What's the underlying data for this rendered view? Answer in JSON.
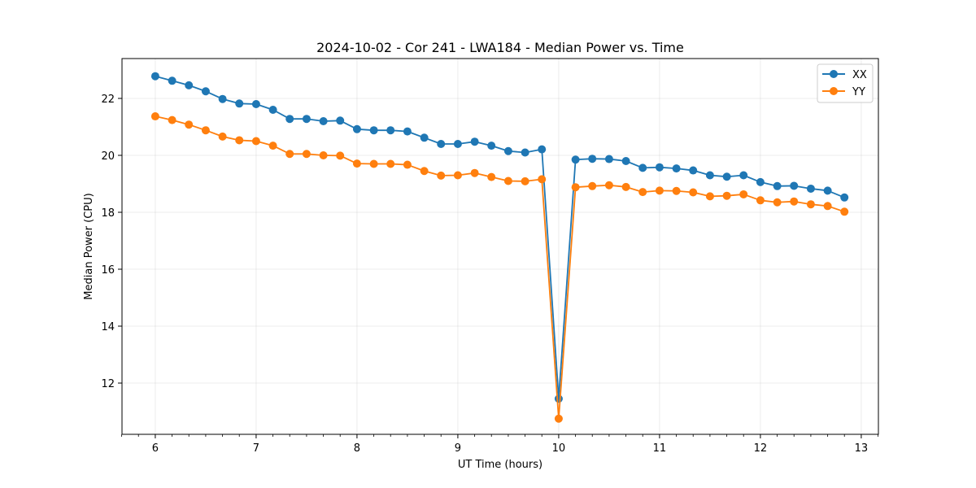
{
  "chart_data": {
    "type": "line",
    "title": "2024-10-02 - Cor 241 - LWA184 - Median Power vs. Time",
    "xlabel": "UT Time (hours)",
    "ylabel": "Median Power (CPU)",
    "xlim": [
      5.67,
      13.17
    ],
    "ylim": [
      10.2,
      23.4
    ],
    "xticks": [
      6,
      7,
      8,
      9,
      10,
      11,
      12,
      13
    ],
    "xtick_labels": [
      "6",
      "7",
      "8",
      "9",
      "10",
      "11",
      "12",
      "13"
    ],
    "xminor_ticks": [
      5.667,
      5.833,
      6.167,
      6.333,
      6.5,
      6.667,
      6.833,
      7.167,
      7.333,
      7.5,
      7.667,
      7.833,
      8.167,
      8.333,
      8.5,
      8.667,
      8.833,
      9.167,
      9.333,
      9.5,
      9.667,
      9.833,
      10.167,
      10.333,
      10.5,
      10.667,
      10.833,
      11.167,
      11.333,
      11.5,
      11.667,
      11.833,
      12.167,
      12.333,
      12.5,
      12.667,
      12.833,
      13.167
    ],
    "yticks": [
      12,
      14,
      16,
      18,
      20,
      22
    ],
    "ytick_labels": [
      "12",
      "14",
      "16",
      "18",
      "20",
      "22"
    ],
    "grid": true,
    "legend_position": "top-right",
    "x": [
      6.0,
      6.167,
      6.333,
      6.5,
      6.667,
      6.833,
      7.0,
      7.167,
      7.333,
      7.5,
      7.667,
      7.833,
      8.0,
      8.167,
      8.333,
      8.5,
      8.667,
      8.833,
      9.0,
      9.167,
      9.333,
      9.5,
      9.667,
      9.833,
      10.0,
      10.167,
      10.333,
      10.5,
      10.667,
      10.833,
      11.0,
      11.167,
      11.333,
      11.5,
      11.667,
      11.833,
      12.0,
      12.167,
      12.333,
      12.5,
      12.667,
      12.833
    ],
    "series": [
      {
        "name": "XX",
        "color": "#1f77b4",
        "values": [
          22.78,
          22.62,
          22.46,
          22.25,
          21.98,
          21.82,
          21.8,
          21.6,
          21.28,
          21.28,
          21.2,
          21.22,
          20.92,
          20.88,
          20.88,
          20.84,
          20.62,
          20.4,
          20.4,
          20.48,
          20.34,
          20.15,
          20.1,
          20.21,
          11.45,
          19.85,
          19.88,
          19.87,
          19.8,
          19.56,
          19.58,
          19.54,
          19.47,
          19.3,
          19.25,
          19.3,
          19.06,
          18.92,
          18.93,
          18.83,
          18.76,
          18.52
        ]
      },
      {
        "name": "YY",
        "color": "#ff7f0e",
        "values": [
          21.37,
          21.24,
          21.08,
          20.88,
          20.66,
          20.53,
          20.5,
          20.34,
          20.05,
          20.05,
          20.0,
          19.99,
          19.71,
          19.7,
          19.7,
          19.67,
          19.45,
          19.29,
          19.3,
          19.38,
          19.24,
          19.1,
          19.09,
          19.16,
          10.75,
          18.88,
          18.92,
          18.95,
          18.89,
          18.71,
          18.76,
          18.75,
          18.7,
          18.56,
          18.58,
          18.63,
          18.42,
          18.35,
          18.38,
          18.28,
          18.22,
          18.02
        ]
      }
    ]
  }
}
